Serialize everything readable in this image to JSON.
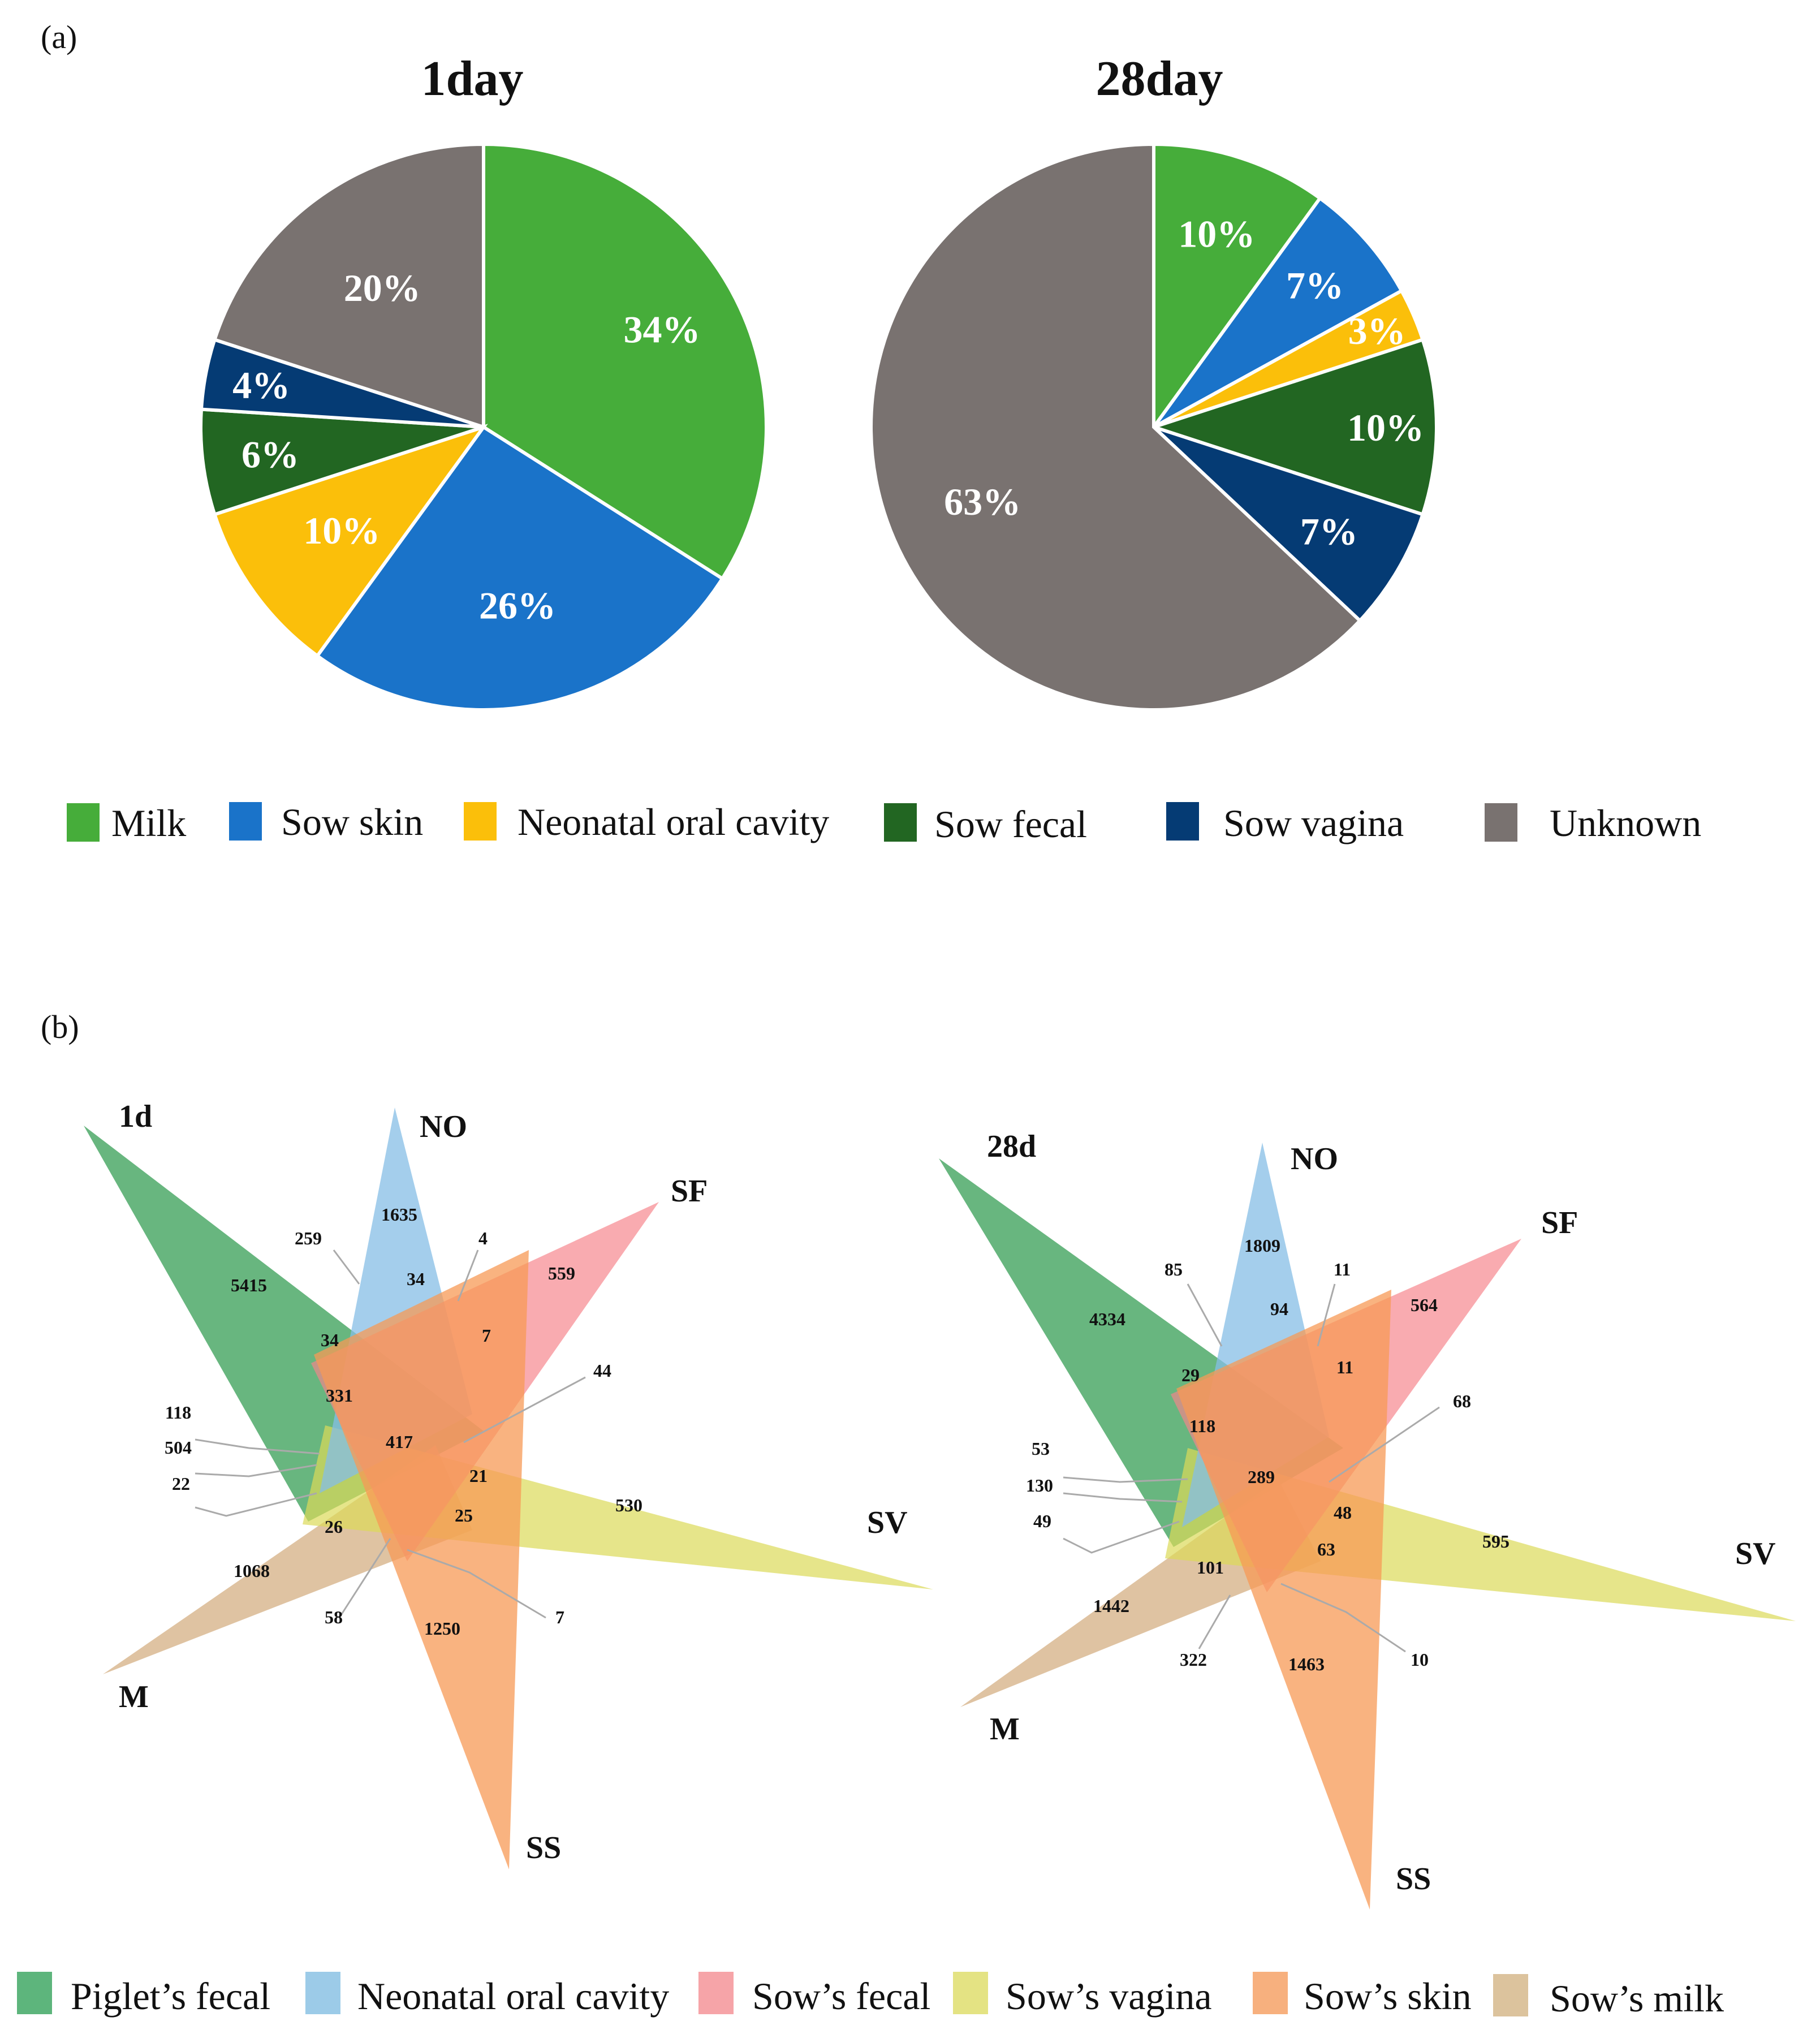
{
  "panel_a": {
    "label": "(a)"
  },
  "panel_b": {
    "label": "(b)"
  },
  "chart_data": [
    {
      "type": "pie",
      "title": "1day",
      "labels": [
        "Milk",
        "Sow skin",
        "Neonatal oral cavity",
        "Sow fecal",
        "Sow vagina",
        "Unknown"
      ],
      "values": [
        34,
        26,
        10,
        6,
        4,
        20
      ],
      "value_labels": [
        "34%",
        "26%",
        "10%",
        "6%",
        "4%",
        "20%"
      ],
      "colors": [
        "#46ad3a",
        "#1a73c9",
        "#fbbf0a",
        "#226622",
        "#053b74",
        "#797270"
      ]
    },
    {
      "type": "pie",
      "title": "28day",
      "labels": [
        "Milk",
        "Sow skin",
        "Neonatal oral cavity",
        "Sow fecal",
        "Sow vagina",
        "Unknown"
      ],
      "values": [
        10,
        7,
        3,
        10,
        7,
        63
      ],
      "value_labels": [
        "10%",
        "7%",
        "3%",
        "10%",
        "7%",
        "63%"
      ],
      "colors": [
        "#46ad3a",
        "#1a73c9",
        "#fbbf0a",
        "#226622",
        "#053b74",
        "#797270"
      ]
    },
    {
      "type": "venn",
      "title": "1d",
      "sets": [
        "Piglet's fecal",
        "Neonatal oral cavity",
        "Sow's fecal",
        "Sow's vagina",
        "Sow's skin",
        "Sow's milk"
      ],
      "set_labels": [
        "NO",
        "SF",
        "SV",
        "SS",
        "M"
      ],
      "counts": [
        "5415",
        "1635",
        "559",
        "530",
        "1250",
        "1068",
        "259",
        "4",
        "34",
        "7",
        "44",
        "34",
        "331",
        "417",
        "21",
        "25",
        "118",
        "504",
        "22",
        "26",
        "58",
        "7"
      ]
    },
    {
      "type": "venn",
      "title": "28d",
      "sets": [
        "Piglet's fecal",
        "Neonatal oral cavity",
        "Sow's fecal",
        "Sow's vagina",
        "Sow's skin",
        "Sow's milk"
      ],
      "set_labels": [
        "NO",
        "SF",
        "SV",
        "SS",
        "M"
      ],
      "counts": [
        "4334",
        "1809",
        "564",
        "595",
        "1463",
        "1442",
        "85",
        "11",
        "94",
        "11",
        "68",
        "29",
        "118",
        "289",
        "48",
        "63",
        "53",
        "130",
        "49",
        "101",
        "322",
        "10"
      ]
    }
  ],
  "legend_a": [
    {
      "label": "Milk",
      "color": "#46ad3a"
    },
    {
      "label": "Sow skin",
      "color": "#1a73c9"
    },
    {
      "label": "Neonatal oral cavity",
      "color": "#fbbf0a"
    },
    {
      "label": "Sow fecal",
      "color": "#226622"
    },
    {
      "label": "Sow vagina",
      "color": "#053b74"
    },
    {
      "label": "Unknown",
      "color": "#797270"
    }
  ],
  "legend_b": [
    {
      "label": "Piglet’s fecal",
      "color": "#5db57c"
    },
    {
      "label": "Neonatal oral cavity",
      "color": "#9ccbe8"
    },
    {
      "label": "Sow’s fecal",
      "color": "#f6a4a8"
    },
    {
      "label": "Sow’s vagina",
      "color": "#e4e383"
    },
    {
      "label": "Sow’s skin",
      "color": "#f7b07e"
    },
    {
      "label": "Sow’s milk",
      "color": "#dcc39d"
    }
  ]
}
